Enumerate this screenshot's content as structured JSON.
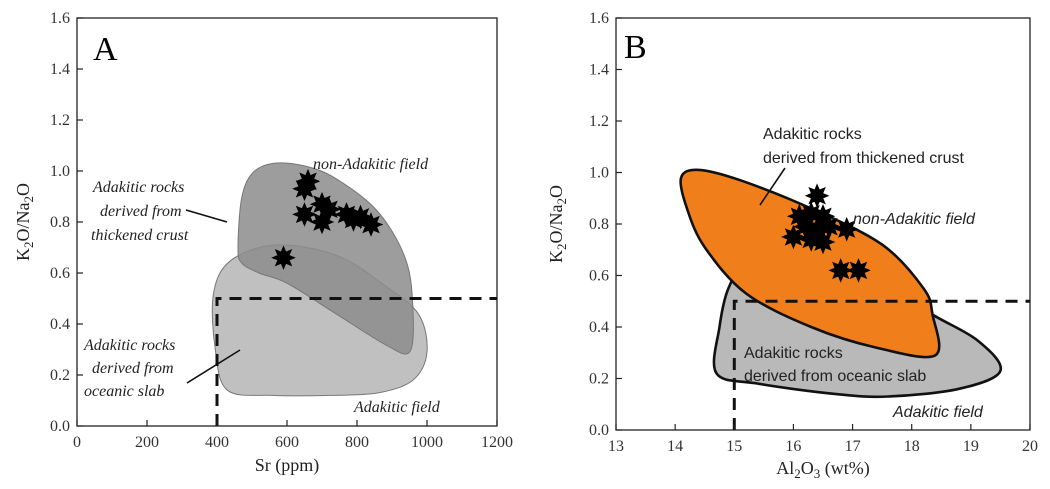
{
  "chart_data": [
    {
      "type": "scatter",
      "panel_label": "A",
      "xlabel": "Sr (ppm)",
      "ylabel": "K2O/Na2O",
      "xlim": [
        0,
        1200
      ],
      "ylim": [
        0.0,
        1.6
      ],
      "xticks": [
        "0",
        "200",
        "400",
        "600",
        "800",
        "1000",
        "1200"
      ],
      "yticks": [
        "0.0",
        "0.2",
        "0.4",
        "0.6",
        "0.8",
        "1.0",
        "1.2",
        "1.4",
        "1.6"
      ],
      "fields": [
        {
          "label_lines": [
            "Adakitic rocks",
            "derived from",
            "oceanic slab"
          ],
          "fill": "#bdbdbd",
          "polygon": [
            [
              430,
              0.14
            ],
            [
              560,
              0.12
            ],
            [
              720,
              0.12
            ],
            [
              860,
              0.13
            ],
            [
              960,
              0.18
            ],
            [
              1000,
              0.29
            ],
            [
              975,
              0.44
            ],
            [
              870,
              0.56
            ],
            [
              740,
              0.67
            ],
            [
              570,
              0.71
            ],
            [
              440,
              0.65
            ],
            [
              390,
              0.52
            ],
            [
              395,
              0.3
            ]
          ]
        },
        {
          "label_lines": [
            "Adakitic rocks",
            "derived from",
            "thickened crust"
          ],
          "fill": "#8c8c8c",
          "polygon": [
            [
              460,
              0.7
            ],
            [
              470,
              0.89
            ],
            [
              500,
              0.99
            ],
            [
              560,
              1.03
            ],
            [
              650,
              1.02
            ],
            [
              740,
              0.97
            ],
            [
              860,
              0.84
            ],
            [
              940,
              0.65
            ],
            [
              960,
              0.45
            ],
            [
              950,
              0.29
            ],
            [
              880,
              0.32
            ],
            [
              740,
              0.44
            ],
            [
              600,
              0.56
            ],
            [
              520,
              0.6
            ],
            [
              470,
              0.64
            ]
          ]
        }
      ],
      "annotations": [
        "non-Adakitic field",
        "Adakitic field"
      ],
      "dashed_boundary": {
        "x": 400,
        "y": 0.5
      },
      "points": [
        [
          650,
          0.93
        ],
        [
          660,
          0.96
        ],
        [
          650,
          0.83
        ],
        [
          700,
          0.87
        ],
        [
          720,
          0.85
        ],
        [
          770,
          0.83
        ],
        [
          790,
          0.81
        ],
        [
          810,
          0.82
        ],
        [
          840,
          0.79
        ],
        [
          700,
          0.8
        ],
        [
          590,
          0.66
        ]
      ]
    },
    {
      "type": "scatter",
      "panel_label": "B",
      "xlabel": "Al2O3 (wt%)",
      "ylabel": "K2O/Na2O",
      "xlim": [
        13,
        20
      ],
      "ylim": [
        0.0,
        1.6
      ],
      "xticks": [
        "13",
        "14",
        "15",
        "16",
        "17",
        "18",
        "19",
        "20"
      ],
      "yticks": [
        "0.0",
        "0.2",
        "0.4",
        "0.6",
        "0.8",
        "1.0",
        "1.2",
        "1.4",
        "1.6"
      ],
      "fields": [
        {
          "label_lines": [
            "Adakitic rocks",
            "derived from oceanic slab"
          ],
          "fill": "#b9b9b9",
          "polygon": [
            [
              14.7,
              0.22
            ],
            [
              15.4,
              0.18
            ],
            [
              16.7,
              0.14
            ],
            [
              17.6,
              0.13
            ],
            [
              18.8,
              0.16
            ],
            [
              19.5,
              0.23
            ],
            [
              19.1,
              0.35
            ],
            [
              18.2,
              0.47
            ],
            [
              17.3,
              0.64
            ],
            [
              16.6,
              0.73
            ],
            [
              15.9,
              0.74
            ],
            [
              15.2,
              0.65
            ],
            [
              14.9,
              0.55
            ],
            [
              14.75,
              0.4
            ]
          ]
        },
        {
          "label_lines": [
            "Adakitic rocks",
            "derived from thickened crust"
          ],
          "fill": "#f07f1b",
          "polygon": [
            [
              14.1,
              0.98
            ],
            [
              14.4,
              1.01
            ],
            [
              15.1,
              0.97
            ],
            [
              16.3,
              0.86
            ],
            [
              17.5,
              0.72
            ],
            [
              18.2,
              0.55
            ],
            [
              18.35,
              0.45
            ],
            [
              18.4,
              0.29
            ],
            [
              17.4,
              0.32
            ],
            [
              16.3,
              0.4
            ],
            [
              15.2,
              0.53
            ],
            [
              14.5,
              0.71
            ],
            [
              14.2,
              0.86
            ]
          ]
        }
      ],
      "annotations": [
        "non-Adakitic field",
        "Adakitic field"
      ],
      "dashed_boundary": {
        "x": 15,
        "y": 0.5
      },
      "points": [
        [
          16.4,
          0.91
        ],
        [
          16.1,
          0.83
        ],
        [
          16.3,
          0.84
        ],
        [
          16.5,
          0.83
        ],
        [
          16.2,
          0.79
        ],
        [
          16.4,
          0.78
        ],
        [
          16.6,
          0.79
        ],
        [
          16.0,
          0.75
        ],
        [
          16.3,
          0.74
        ],
        [
          16.5,
          0.73
        ],
        [
          16.9,
          0.78
        ],
        [
          16.8,
          0.62
        ],
        [
          17.1,
          0.62
        ]
      ]
    }
  ]
}
